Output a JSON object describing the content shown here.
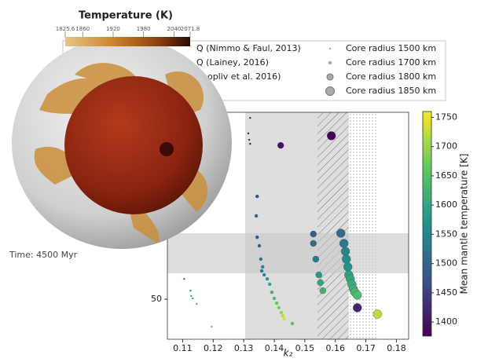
{
  "chart_data": {
    "type": "scatter",
    "xlabel": "k₂",
    "xlim": [
      0.105,
      0.184
    ],
    "xticks": [
      0.11,
      0.12,
      0.13,
      0.14,
      0.15,
      0.16,
      0.17,
      0.18
    ],
    "ylim": [
      35,
      120
    ],
    "yticks": [
      50
    ],
    "colorbar": {
      "label": "Mean mantle temperature [K]",
      "lim": [
        1376,
        1760
      ],
      "ticks": [
        1400,
        1450,
        1500,
        1550,
        1600,
        1650,
        1700,
        1750
      ]
    },
    "constraints": [
      "Q (Nimmo & Faul, 2013)",
      "Q (Lainey, 2016)",
      "nopliv et al. 2016)"
    ],
    "regions": [
      {
        "axis": "x",
        "range": [
          0.1305,
          0.1644
        ],
        "style": "fill"
      },
      {
        "axis": "x",
        "range": [
          0.1541,
          0.1644
        ],
        "style": "hatch"
      },
      {
        "axis": "x",
        "range": [
          0.1644,
          0.1738
        ],
        "style": "dots"
      },
      {
        "axis": "y",
        "range": [
          70.0,
          74.7
        ],
        "style": "fill"
      },
      {
        "axis": "y",
        "range": [
          59.7,
          70.0
        ],
        "style": "fill"
      }
    ],
    "series": [
      {
        "name": "Core radius 1500 km",
        "x": [
          0.1105,
          0.1126,
          0.1128,
          0.1133,
          0.1146,
          0.1195,
          0.1321,
          0.1315,
          0.1318,
          0.1321
        ],
        "values": [
          57.6,
          53.2,
          51.2,
          50.3,
          48.2,
          39.7,
          117.9,
          112.1,
          109.7,
          108.2
        ],
        "temperature": [
          1520,
          1560,
          1580,
          1600,
          1620,
          1640,
          1400,
          1400,
          1410,
          1400
        ]
      },
      {
        "name": "Core radius 1700 km",
        "x": [
          0.1341,
          0.1344,
          0.1351,
          0.1356,
          0.1362,
          0.1359,
          0.1367,
          0.1377,
          0.1385,
          0.1392,
          0.14,
          0.1408,
          0.1415,
          0.1423,
          0.1428,
          0.1433,
          0.1459,
          0.1344
        ],
        "values": [
          81.2,
          73.2,
          70.0,
          65.0,
          62.1,
          60.6,
          59.1,
          57.6,
          55.6,
          52.6,
          50.3,
          48.5,
          46.8,
          45.0,
          43.8,
          42.6,
          40.9,
          88.5
        ],
        "temperature": [
          1500,
          1480,
          1500,
          1520,
          1540,
          1530,
          1560,
          1580,
          1600,
          1620,
          1640,
          1660,
          1680,
          1700,
          1720,
          1740,
          1650,
          1470
        ]
      },
      {
        "name": "Core radius 1800 km",
        "x": [
          0.1528,
          0.1536,
          0.1546,
          0.1551,
          0.1559,
          0.1528,
          0.1421
        ],
        "values": [
          70.9,
          65.0,
          59.1,
          56.2,
          53.2,
          74.4,
          107.6
        ],
        "temperature": [
          1510,
          1530,
          1580,
          1600,
          1620,
          1490,
          1400
        ]
      },
      {
        "name": "Core radius 1850 km",
        "x": [
          0.1587,
          0.1618,
          0.1628,
          0.1633,
          0.1636,
          0.1641,
          0.1644,
          0.1649,
          0.1654,
          0.1659,
          0.1664,
          0.1672,
          0.1672,
          0.1738
        ],
        "values": [
          111.2,
          74.7,
          70.9,
          67.9,
          65.0,
          62.1,
          59.1,
          57.6,
          55.6,
          53.8,
          52.6,
          51.5,
          46.8,
          44.4
        ],
        "temperature": [
          1385,
          1510,
          1530,
          1550,
          1560,
          1570,
          1590,
          1600,
          1610,
          1620,
          1630,
          1640,
          1420,
          1720
        ]
      }
    ]
  },
  "overlay": {
    "title": "Temperature (K)",
    "lim": [
      1825.6,
      2071.8
    ],
    "ticks": [
      1825.6,
      1860,
      1920,
      1980,
      2040,
      2071.8
    ],
    "time_label": "Time: 4500 Myr"
  }
}
